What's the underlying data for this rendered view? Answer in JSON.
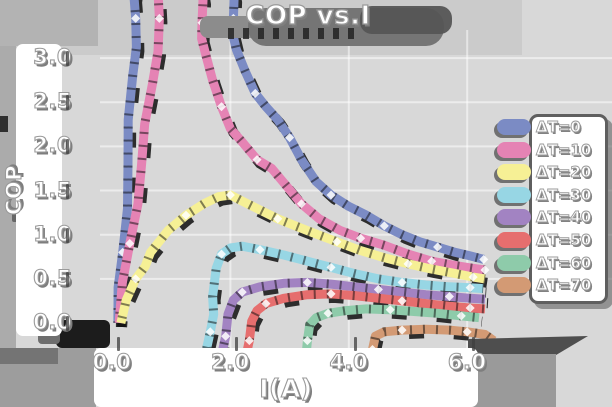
{
  "title": "COP vs.I",
  "axes": {
    "x": {
      "label": "I(A)",
      "ticks": [
        {
          "v": 0,
          "label": "0.0"
        },
        {
          "v": 2,
          "label": "2.0"
        },
        {
          "v": 4,
          "label": "4.0"
        },
        {
          "v": 6,
          "label": "6.0"
        }
      ]
    },
    "y": {
      "label": "COP",
      "ticks": [
        {
          "v": 0.0,
          "label": "0.0"
        },
        {
          "v": 0.5,
          "label": "0.5"
        },
        {
          "v": 1.0,
          "label": "1.0"
        },
        {
          "v": 1.5,
          "label": "1.5"
        },
        {
          "v": 2.0,
          "label": "2.0"
        },
        {
          "v": 2.5,
          "label": "2.5"
        },
        {
          "v": 3.0,
          "label": "3.0"
        }
      ]
    }
  },
  "legend": {
    "items": [
      {
        "label": "ΔT=0",
        "color": "#7b8bc4"
      },
      {
        "label": "ΔT=10",
        "color": "#e583b4"
      },
      {
        "label": "ΔT=20",
        "color": "#f6f095"
      },
      {
        "label": "ΔT=30",
        "color": "#97d6e4"
      },
      {
        "label": "ΔT=40",
        "color": "#a283c2"
      },
      {
        "label": "ΔT=50",
        "color": "#e66e6e"
      },
      {
        "label": "ΔT=60",
        "color": "#8ecbaa"
      },
      {
        "label": "ΔT=70",
        "color": "#d39a74"
      }
    ]
  },
  "chart_data": {
    "type": "line",
    "title": "COP vs.I",
    "xlabel": "I(A)",
    "ylabel": "COP",
    "xlim": [
      -0.2,
      6.75
    ],
    "ylim": [
      -0.55,
      3.3
    ],
    "x_ticks": [
      0,
      2,
      4,
      6
    ],
    "y_ticks": [
      0,
      0.5,
      1.0,
      1.5,
      2.0,
      2.5,
      3.0
    ],
    "grid": true,
    "legend_position": "center right",
    "style": "sketchy-thick-lines",
    "series": [
      {
        "name": "ΔT=0",
        "color": "#7b8bc4",
        "points": [
          [
            0.1,
            0.0
          ],
          [
            0.18,
            0.8
          ],
          [
            0.27,
            1.8
          ],
          [
            0.35,
            2.8
          ],
          [
            0.4,
            3.45
          ],
          [
            0.42,
            3.9
          ],
          [
            2.0,
            3.9
          ],
          [
            2.05,
            3.45
          ],
          [
            2.1,
            3.1
          ],
          [
            2.25,
            2.85
          ],
          [
            2.42,
            2.6
          ],
          [
            2.6,
            2.45
          ],
          [
            2.8,
            2.3
          ],
          [
            3.0,
            2.1
          ],
          [
            3.2,
            1.85
          ],
          [
            3.45,
            1.6
          ],
          [
            3.7,
            1.45
          ],
          [
            4.0,
            1.32
          ],
          [
            4.3,
            1.22
          ],
          [
            4.6,
            1.1
          ],
          [
            4.9,
            1.0
          ],
          [
            5.2,
            0.92
          ],
          [
            5.5,
            0.86
          ],
          [
            5.8,
            0.8
          ],
          [
            6.05,
            0.76
          ],
          [
            6.28,
            0.72
          ]
        ]
      },
      {
        "name": "ΔT=10",
        "color": "#e583b4",
        "points": [
          [
            0.12,
            0.0
          ],
          [
            0.3,
            0.9
          ],
          [
            0.5,
            1.8
          ],
          [
            0.68,
            2.7
          ],
          [
            0.8,
            3.45
          ],
          [
            0.84,
            3.9
          ],
          [
            1.48,
            3.9
          ],
          [
            1.52,
            3.4
          ],
          [
            1.58,
            3.05
          ],
          [
            1.7,
            2.75
          ],
          [
            1.85,
            2.45
          ],
          [
            2.0,
            2.2
          ],
          [
            2.2,
            2.05
          ],
          [
            2.45,
            1.85
          ],
          [
            2.7,
            1.75
          ],
          [
            2.95,
            1.55
          ],
          [
            3.2,
            1.35
          ],
          [
            3.5,
            1.18
          ],
          [
            3.85,
            1.05
          ],
          [
            4.2,
            0.96
          ],
          [
            4.6,
            0.88
          ],
          [
            5.0,
            0.78
          ],
          [
            5.4,
            0.7
          ],
          [
            5.8,
            0.65
          ],
          [
            6.1,
            0.62
          ],
          [
            6.3,
            0.6
          ]
        ]
      },
      {
        "name": "ΔT=20",
        "color": "#f6f095",
        "points": [
          [
            0.15,
            0.0
          ],
          [
            0.4,
            0.5
          ],
          [
            0.65,
            0.8
          ],
          [
            0.95,
            1.05
          ],
          [
            1.25,
            1.22
          ],
          [
            1.55,
            1.35
          ],
          [
            1.8,
            1.43
          ],
          [
            2.0,
            1.45
          ],
          [
            2.2,
            1.38
          ],
          [
            2.5,
            1.28
          ],
          [
            2.8,
            1.18
          ],
          [
            3.1,
            1.1
          ],
          [
            3.4,
            1.02
          ],
          [
            3.8,
            0.92
          ],
          [
            4.2,
            0.82
          ],
          [
            4.6,
            0.74
          ],
          [
            5.0,
            0.67
          ],
          [
            5.4,
            0.61
          ],
          [
            5.8,
            0.56
          ],
          [
            6.1,
            0.52
          ],
          [
            6.3,
            0.5
          ]
        ]
      },
      {
        "name": "ΔT=30",
        "color": "#97d6e4",
        "points": [
          [
            1.62,
            -0.45
          ],
          [
            1.66,
            -0.1
          ],
          [
            1.7,
            0.3
          ],
          [
            1.76,
            0.62
          ],
          [
            1.85,
            0.78
          ],
          [
            2.0,
            0.85
          ],
          [
            2.2,
            0.87
          ],
          [
            2.5,
            0.83
          ],
          [
            2.9,
            0.77
          ],
          [
            3.3,
            0.7
          ],
          [
            3.7,
            0.63
          ],
          [
            4.1,
            0.56
          ],
          [
            4.5,
            0.5
          ],
          [
            4.9,
            0.46
          ],
          [
            5.3,
            0.43
          ],
          [
            5.7,
            0.41
          ],
          [
            6.05,
            0.4
          ],
          [
            6.27,
            0.39
          ]
        ]
      },
      {
        "name": "ΔT=40",
        "color": "#a283c2",
        "points": [
          [
            1.88,
            -0.5
          ],
          [
            1.92,
            -0.15
          ],
          [
            1.96,
            0.1
          ],
          [
            2.05,
            0.26
          ],
          [
            2.2,
            0.35
          ],
          [
            2.5,
            0.41
          ],
          [
            2.9,
            0.45
          ],
          [
            3.3,
            0.46
          ],
          [
            3.7,
            0.44
          ],
          [
            4.1,
            0.41
          ],
          [
            4.5,
            0.38
          ],
          [
            4.9,
            0.35
          ],
          [
            5.3,
            0.32
          ],
          [
            5.7,
            0.3
          ],
          [
            6.05,
            0.28
          ],
          [
            6.3,
            0.27
          ]
        ]
      },
      {
        "name": "ΔT=50",
        "color": "#e66e6e",
        "points": [
          [
            2.28,
            -0.55
          ],
          [
            2.32,
            -0.2
          ],
          [
            2.36,
            0.02
          ],
          [
            2.45,
            0.14
          ],
          [
            2.6,
            0.22
          ],
          [
            2.9,
            0.28
          ],
          [
            3.3,
            0.32
          ],
          [
            3.7,
            0.33
          ],
          [
            4.1,
            0.31
          ],
          [
            4.5,
            0.28
          ],
          [
            4.9,
            0.25
          ],
          [
            5.3,
            0.22
          ],
          [
            5.7,
            0.19
          ],
          [
            6.05,
            0.17
          ],
          [
            6.3,
            0.16
          ]
        ]
      },
      {
        "name": "ΔT=60",
        "color": "#8ecbaa",
        "points": [
          [
            3.26,
            -0.5
          ],
          [
            3.3,
            -0.2
          ],
          [
            3.34,
            -0.02
          ],
          [
            3.45,
            0.06
          ],
          [
            3.65,
            0.11
          ],
          [
            3.95,
            0.14
          ],
          [
            4.3,
            0.16
          ],
          [
            4.7,
            0.15
          ],
          [
            5.1,
            0.13
          ],
          [
            5.5,
            0.11
          ],
          [
            5.9,
            0.08
          ],
          [
            6.2,
            0.06
          ]
        ]
      },
      {
        "name": "ΔT=70",
        "color": "#d39a74",
        "points": [
          [
            4.35,
            -0.6
          ],
          [
            4.4,
            -0.3
          ],
          [
            4.45,
            -0.15
          ],
          [
            4.6,
            -0.1
          ],
          [
            4.9,
            -0.08
          ],
          [
            5.3,
            -0.07
          ],
          [
            5.7,
            -0.08
          ],
          [
            6.0,
            -0.1
          ],
          [
            6.3,
            -0.13
          ],
          [
            6.45,
            -0.2
          ]
        ]
      }
    ]
  },
  "colors": {
    "background": "#d8d8d8",
    "panel": "#ffffff",
    "shadow_dark": "#4f4f4f",
    "shadow_mid": "#757575",
    "grid": "#ffffff"
  }
}
